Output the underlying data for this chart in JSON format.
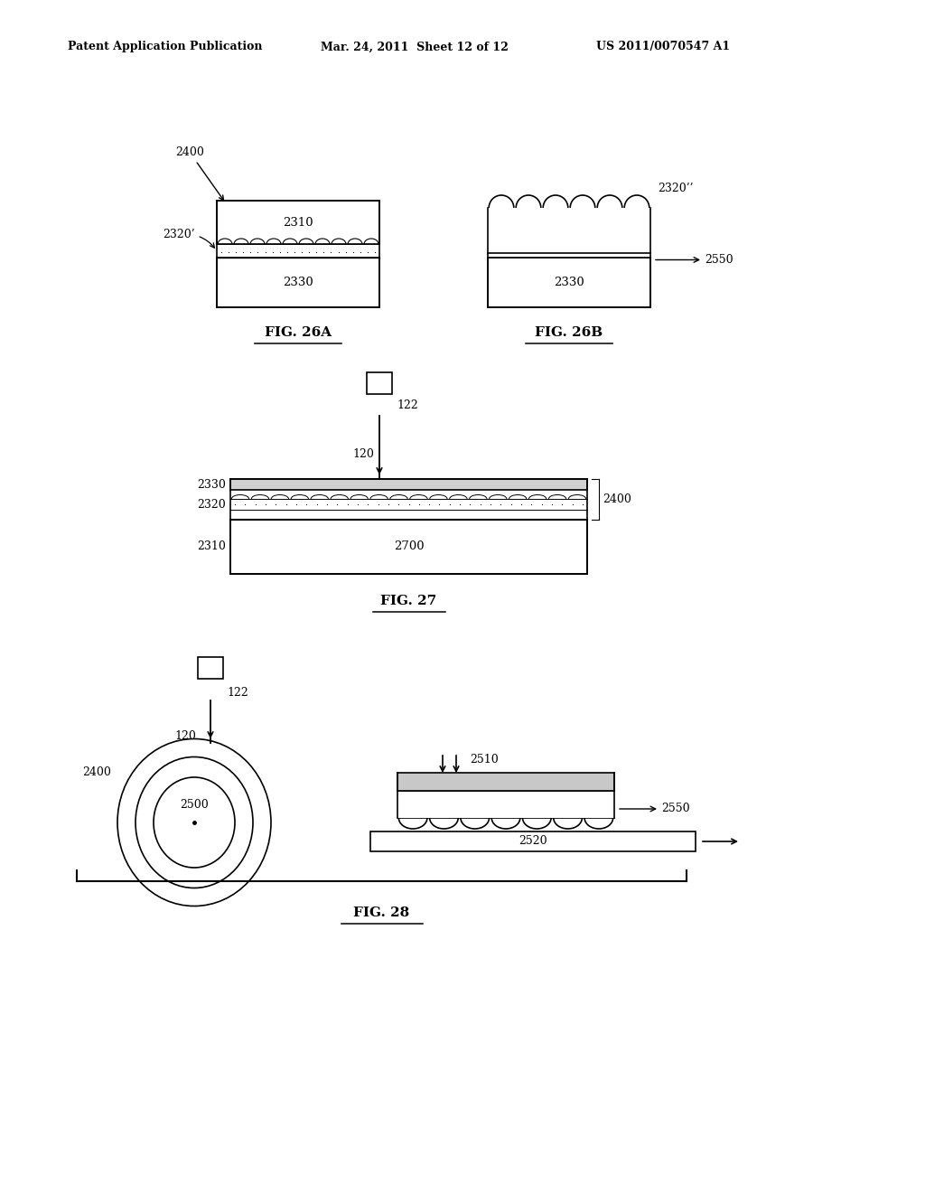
{
  "bg_color": "#ffffff",
  "header_left": "Patent Application Publication",
  "header_mid": "Mar. 24, 2011  Sheet 12 of 12",
  "header_right": "US 2011/0070547 A1",
  "fig26a_label": "FIG. 26A",
  "fig26b_label": "FIG. 26B",
  "fig27_label": "FIG. 27",
  "fig28_label": "FIG. 28"
}
